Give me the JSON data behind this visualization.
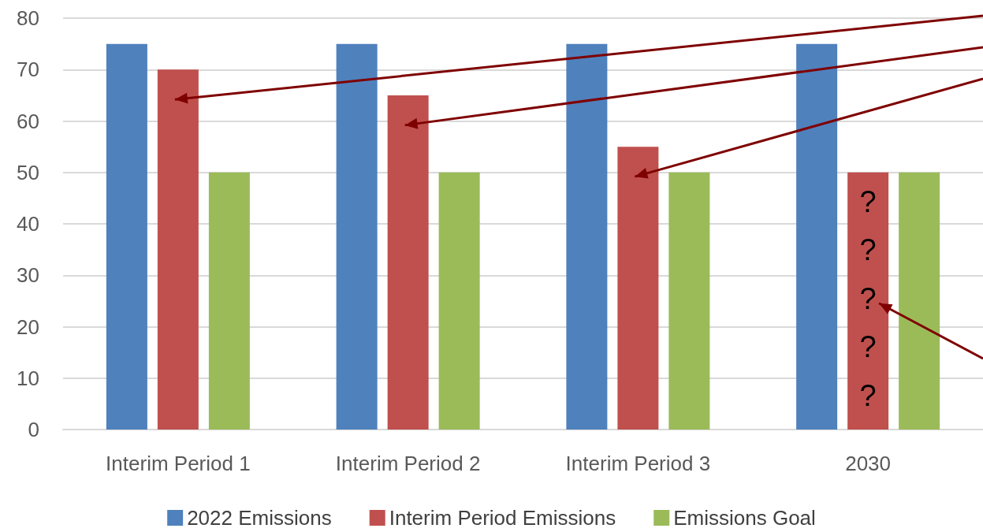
{
  "chart_data": {
    "type": "bar",
    "categories": [
      "Interim Period 1",
      "Interim Period 2",
      "Interim Period 3",
      "2030"
    ],
    "series": [
      {
        "name": "2022 Emissions",
        "color": "#4f81bd",
        "values": [
          75,
          75,
          75,
          75
        ]
      },
      {
        "name": "Interim Period Emissions",
        "color": "#c0504d",
        "values": [
          70,
          65,
          55,
          50
        ]
      },
      {
        "name": "Emissions Goal",
        "color": "#9bbb59",
        "values": [
          50,
          50,
          50,
          50
        ]
      }
    ],
    "annotations": [
      "?",
      "?",
      "?",
      "?",
      "?"
    ],
    "ylim": [
      0,
      80
    ],
    "yticks": [
      0,
      10,
      20,
      30,
      40,
      50,
      60,
      70,
      80
    ],
    "grid": "y",
    "legend": "bottom"
  }
}
